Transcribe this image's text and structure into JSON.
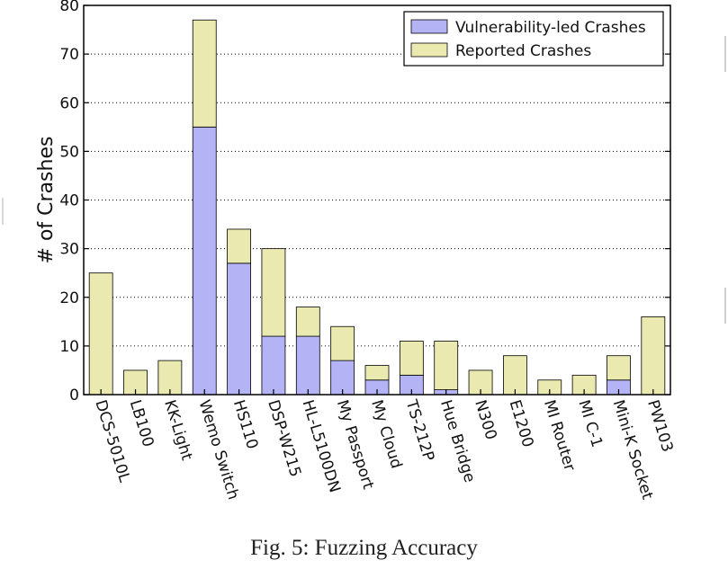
{
  "chart_data": {
    "type": "bar",
    "stacked": true,
    "categories": [
      "DCS-5010L",
      "LB100",
      "KK-Light",
      "Wemo Switch",
      "HS110",
      "DSP-W215",
      "HL-L5100DN",
      "My Passport",
      "My Cloud",
      "TS-212P",
      "Hue Bridge",
      "N300",
      "E1200",
      "MI Router",
      "MI C-1",
      "Mini-K Socket",
      "PW103"
    ],
    "series": [
      {
        "name": "Vulnerability-led Crashes",
        "color": "#b3b3f5",
        "values": [
          0,
          0,
          0,
          55,
          27,
          12,
          12,
          7,
          3,
          4,
          1,
          0,
          0,
          0,
          0,
          3,
          0
        ]
      },
      {
        "name": "Reported Crashes",
        "color": "#e9e9b0",
        "values": [
          25,
          5,
          7,
          22,
          7,
          18,
          6,
          7,
          3,
          7,
          10,
          5,
          8,
          3,
          4,
          5,
          16
        ]
      }
    ],
    "ylabel": "# of Crashes",
    "xlabel": "",
    "ylim": [
      0,
      80
    ],
    "yticks": [
      0,
      10,
      20,
      30,
      40,
      50,
      60,
      70,
      80
    ],
    "grid": true,
    "legend_position": "top-right"
  },
  "caption": "Fig. 5: Fuzzing Accuracy"
}
